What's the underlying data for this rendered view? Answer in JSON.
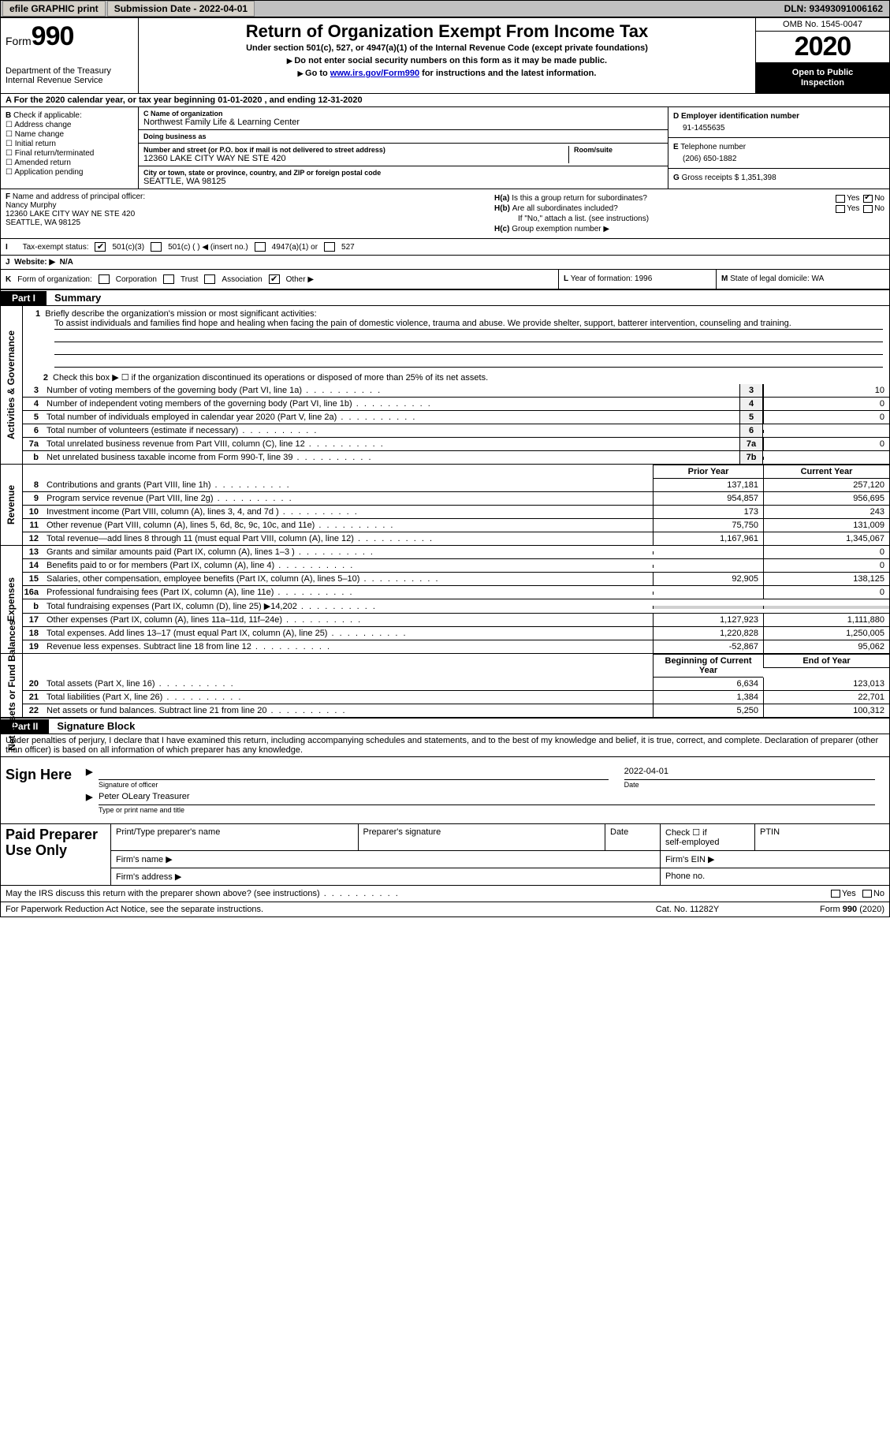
{
  "top": {
    "efile": "efile GRAPHIC print",
    "submission": "Submission Date - 2022-04-01",
    "dln": "DLN: 93493091006162"
  },
  "header": {
    "form_word": "Form",
    "form_num": "990",
    "title": "Return of Organization Exempt From Income Tax",
    "sub": "Under section 501(c), 527, or 4947(a)(1) of the Internal Revenue Code (except private foundations)",
    "note1": "Do not enter social security numbers on this form as it may be made public.",
    "note2_a": "Go to ",
    "note2_link": "www.irs.gov/Form990",
    "note2_b": " for instructions and the latest information.",
    "dept1": "Department of the Treasury",
    "dept2": "Internal Revenue Service",
    "omb": "OMB No. 1545-0047",
    "year": "2020",
    "open1": "Open to Public",
    "open2": "Inspection"
  },
  "lineA": "For the 2020 calendar year, or tax year beginning 01-01-2020   , and ending 12-31-2020",
  "B": {
    "lbl": "Check if applicable:",
    "opts": [
      "Address change",
      "Name change",
      "Initial return",
      "Final return/terminated",
      "Amended return",
      "Application pending"
    ]
  },
  "C": {
    "name_lbl": "Name of organization",
    "name": "Northwest Family Life & Learning Center",
    "dba_lbl": "Doing business as",
    "dba": "",
    "street_lbl": "Number and street (or P.O. box if mail is not delivered to street address)",
    "street": "12360 LAKE CITY WAY NE STE 420",
    "suite_lbl": "Room/suite",
    "suite": "",
    "city_lbl": "City or town, state or province, country, and ZIP or foreign postal code",
    "city": "SEATTLE, WA  98125"
  },
  "D": {
    "lbl": "Employer identification number",
    "val": "91-1455635"
  },
  "E": {
    "lbl": "Telephone number",
    "val": "(206) 650-1882"
  },
  "G": {
    "lbl": "Gross receipts $",
    "val": "1,351,398"
  },
  "F": {
    "lbl": "Name and address of principal officer:",
    "name": "Nancy Murphy",
    "addr1": "12360 LAKE CITY WAY NE STE 420",
    "addr2": "SEATTLE, WA  98125"
  },
  "H": {
    "a": "Is this a group return for subordinates?",
    "a_yes": "Yes",
    "a_no": "No",
    "b": "Are all subordinates included?",
    "b_yes": "Yes",
    "b_no": "No",
    "b_note": "If \"No,\" attach a list. (see instructions)",
    "c": "Group exemption number ▶"
  },
  "I": {
    "lbl": "Tax-exempt status:",
    "o1": "501(c)(3)",
    "o2": "501(c) (  ) ◀ (insert no.)",
    "o3": "4947(a)(1) or",
    "o4": "527"
  },
  "J": {
    "lbl": "Website: ▶",
    "val": "N/A"
  },
  "K": {
    "lbl": "Form of organization:",
    "opts": [
      "Corporation",
      "Trust",
      "Association",
      "Other ▶"
    ],
    "L": "Year of formation: 1996",
    "M": "State of legal domicile: WA"
  },
  "part1": {
    "tag": "Part I",
    "title": "Summary"
  },
  "mission": {
    "num": "1",
    "lbl": "Briefly describe the organization's mission or most significant activities:",
    "text": "To assist individuals and families find hope and healing when facing the pain of domestic violence, trauma and abuse. We provide shelter, support, batterer intervention, counseling and training."
  },
  "gov": {
    "l2": "Check this box ▶ ☐  if the organization discontinued its operations or disposed of more than 25% of its net assets.",
    "rows": [
      {
        "n": "3",
        "lbl": "Number of voting members of the governing body (Part VI, line 1a)",
        "box": "3",
        "v": "10"
      },
      {
        "n": "4",
        "lbl": "Number of independent voting members of the governing body (Part VI, line 1b)",
        "box": "4",
        "v": "0"
      },
      {
        "n": "5",
        "lbl": "Total number of individuals employed in calendar year 2020 (Part V, line 2a)",
        "box": "5",
        "v": "0"
      },
      {
        "n": "6",
        "lbl": "Total number of volunteers (estimate if necessary)",
        "box": "6",
        "v": ""
      },
      {
        "n": "7a",
        "lbl": "Total unrelated business revenue from Part VIII, column (C), line 12",
        "box": "7a",
        "v": "0"
      },
      {
        "n": "b",
        "lbl": "Net unrelated business taxable income from Form 990-T, line 39",
        "box": "7b",
        "v": ""
      }
    ]
  },
  "tabs": {
    "act": "Activities & Governance",
    "rev": "Revenue",
    "exp": "Expenses",
    "net": "Net Assets or Fund Balances"
  },
  "cols": {
    "prior": "Prior Year",
    "current": "Current Year",
    "boy": "Beginning of Current Year",
    "eoy": "End of Year"
  },
  "rev": [
    {
      "n": "8",
      "lbl": "Contributions and grants (Part VIII, line 1h)",
      "p": "137,181",
      "c": "257,120"
    },
    {
      "n": "9",
      "lbl": "Program service revenue (Part VIII, line 2g)",
      "p": "954,857",
      "c": "956,695"
    },
    {
      "n": "10",
      "lbl": "Investment income (Part VIII, column (A), lines 3, 4, and 7d )",
      "p": "173",
      "c": "243"
    },
    {
      "n": "11",
      "lbl": "Other revenue (Part VIII, column (A), lines 5, 6d, 8c, 9c, 10c, and 11e)",
      "p": "75,750",
      "c": "131,009"
    },
    {
      "n": "12",
      "lbl": "Total revenue—add lines 8 through 11 (must equal Part VIII, column (A), line 12)",
      "p": "1,167,961",
      "c": "1,345,067"
    }
  ],
  "exp": [
    {
      "n": "13",
      "lbl": "Grants and similar amounts paid (Part IX, column (A), lines 1–3 )",
      "p": "",
      "c": "0"
    },
    {
      "n": "14",
      "lbl": "Benefits paid to or for members (Part IX, column (A), line 4)",
      "p": "",
      "c": "0"
    },
    {
      "n": "15",
      "lbl": "Salaries, other compensation, employee benefits (Part IX, column (A), lines 5–10)",
      "p": "92,905",
      "c": "138,125"
    },
    {
      "n": "16a",
      "lbl": "Professional fundraising fees (Part IX, column (A), line 11e)",
      "p": "",
      "c": "0"
    },
    {
      "n": "b",
      "lbl": "Total fundraising expenses (Part IX, column (D), line 25) ▶14,202",
      "p": "SHADE",
      "c": "SHADE"
    },
    {
      "n": "17",
      "lbl": "Other expenses (Part IX, column (A), lines 11a–11d, 11f–24e)",
      "p": "1,127,923",
      "c": "1,111,880"
    },
    {
      "n": "18",
      "lbl": "Total expenses. Add lines 13–17 (must equal Part IX, column (A), line 25)",
      "p": "1,220,828",
      "c": "1,250,005"
    },
    {
      "n": "19",
      "lbl": "Revenue less expenses. Subtract line 18 from line 12",
      "p": "-52,867",
      "c": "95,062"
    }
  ],
  "net": [
    {
      "n": "20",
      "lbl": "Total assets (Part X, line 16)",
      "p": "6,634",
      "c": "123,013"
    },
    {
      "n": "21",
      "lbl": "Total liabilities (Part X, line 26)",
      "p": "1,384",
      "c": "22,701"
    },
    {
      "n": "22",
      "lbl": "Net assets or fund balances. Subtract line 21 from line 20",
      "p": "5,250",
      "c": "100,312"
    }
  ],
  "part2": {
    "tag": "Part II",
    "title": "Signature Block"
  },
  "sig": {
    "decl": "Under penalties of perjury, I declare that I have examined this return, including accompanying schedules and statements, and to the best of my knowledge and belief, it is true, correct, and complete. Declaration of preparer (other than officer) is based on all information of which preparer has any knowledge.",
    "sign_here": "Sign Here",
    "sig_lbl": "Signature of officer",
    "date_lbl": "Date",
    "date_val": "2022-04-01",
    "name": "Peter OLeary Treasurer",
    "name_lbl": "Type or print name and title"
  },
  "prep": {
    "title": "Paid Preparer Use Only",
    "c1": "Print/Type preparer's name",
    "c2": "Preparer's signature",
    "c3": "Date",
    "c4a": "Check ☐ if",
    "c4b": "self-employed",
    "c5": "PTIN",
    "r2a": "Firm's name  ▶",
    "r2b": "Firm's EIN ▶",
    "r3a": "Firm's address ▶",
    "r3b": "Phone no."
  },
  "footer": {
    "irs": "May the IRS discuss this return with the preparer shown above? (see instructions)",
    "yes": "Yes",
    "no": "No",
    "pra": "For Paperwork Reduction Act Notice, see the separate instructions.",
    "cat": "Cat. No. 11282Y",
    "form": "Form 990 (2020)"
  }
}
